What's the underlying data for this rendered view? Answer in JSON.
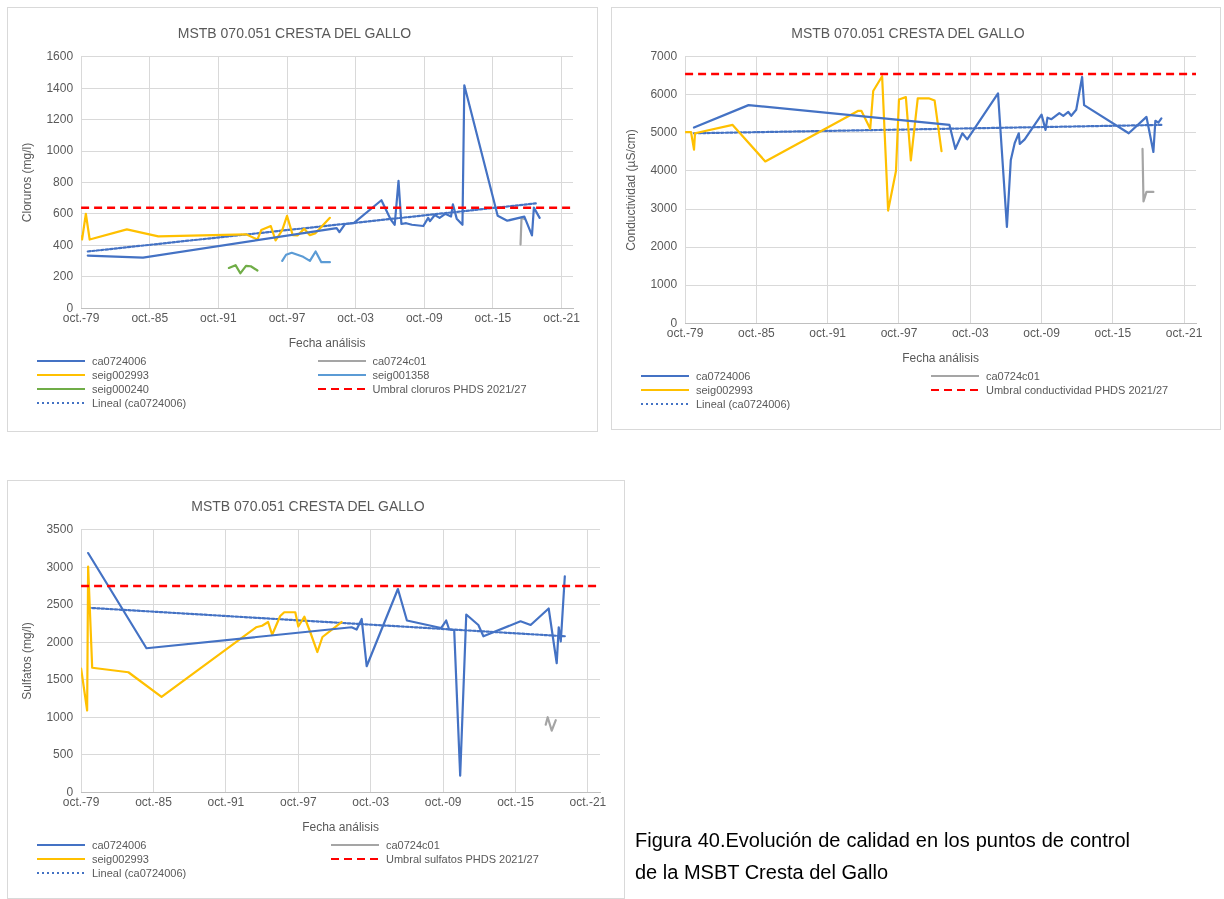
{
  "chart_data": [
    {
      "type": "line",
      "title": "MSTB 070.051 CRESTA DEL GALLO",
      "xlabel": "Fecha análisis",
      "ylabel": "Cloruros (mg/l)",
      "xlim": [
        "1979-10",
        "2022-10"
      ],
      "xticks": [
        {
          "value": "1979-10",
          "label": "oct.-79"
        },
        {
          "value": "1985-10",
          "label": "oct.-85"
        },
        {
          "value": "1991-10",
          "label": "oct.-91"
        },
        {
          "value": "1997-10",
          "label": "oct.-97"
        },
        {
          "value": "2003-10",
          "label": "oct.-03"
        },
        {
          "value": "2009-10",
          "label": "oct.-09"
        },
        {
          "value": "2015-10",
          "label": "oct.-15"
        },
        {
          "value": "2021-10",
          "label": "oct.-21"
        }
      ],
      "ylim": [
        0,
        1600
      ],
      "yticks": [
        0,
        200,
        400,
        600,
        800,
        1000,
        1200,
        1400,
        1600
      ],
      "grid": true,
      "legend": "bottom",
      "marker": "none",
      "series": [
        {
          "name": "ca0724006",
          "color": "#4472c4",
          "x": [
            "1980-05",
            "1985-03",
            "2002-02",
            "2002-05",
            "2002-11",
            "2003-08",
            "2006-01",
            "2006-11",
            "2007-03",
            "2007-07",
            "2007-10",
            "2008-03",
            "2008-09",
            "2009-09",
            "2010-02",
            "2010-04",
            "2010-09",
            "2011-02",
            "2011-08",
            "2012-02",
            "2012-04",
            "2012-08",
            "2013-02",
            "2013-04",
            "2016-03",
            "2017-01",
            "2018-07",
            "2019-03",
            "2019-05",
            "2019-11"
          ],
          "values": [
            335,
            322,
            510,
            484,
            536,
            541,
            687,
            562,
            531,
            810,
            536,
            541,
            531,
            523,
            575,
            554,
            593,
            575,
            601,
            583,
            661,
            570,
            531,
            1419,
            588,
            557,
            583,
            463,
            640,
            575
          ]
        },
        {
          "name": "ca0724c01",
          "color": "#a5a5a5",
          "x": [
            "2018-03",
            "2018-04",
            "2018-07"
          ],
          "values": [
            405,
            575,
            567
          ]
        },
        {
          "name": "seig002993",
          "color": "#ffc000",
          "x": [
            "1979-10",
            "1979-11",
            "1980-03",
            "1980-07",
            "1983-10",
            "1986-07",
            "1994-03",
            "1995-03",
            "1995-07",
            "1996-05",
            "1996-10",
            "1997-05",
            "1997-10",
            "1998-04",
            "1998-09",
            "1999-04",
            "1999-10",
            "2000-04",
            "2001-07"
          ],
          "values": [
            457,
            437,
            601,
            437,
            502,
            457,
            470,
            437,
            497,
            523,
            431,
            497,
            588,
            465,
            463,
            505,
            465,
            478,
            575
          ]
        },
        {
          "name": "seig001358",
          "color": "#5b9bd5",
          "x": [
            "1997-05",
            "1997-09",
            "1998-03",
            "1999-03",
            "1999-10",
            "2000-04",
            "2000-10",
            "2001-07"
          ],
          "values": [
            301,
            340,
            353,
            327,
            301,
            361,
            293,
            293
          ]
        },
        {
          "name": "seig000240",
          "color": "#70ad47",
          "x": [
            "1992-09",
            "1993-04",
            "1993-09",
            "1994-03",
            "1994-08",
            "1995-03"
          ],
          "values": [
            256,
            274,
            222,
            269,
            267,
            240
          ]
        },
        {
          "name": "Lineal (ca0724006)",
          "color": "#4472c4",
          "line_style": "dotted",
          "x": [
            "1980-05",
            "2019-07"
          ],
          "values": [
            361,
            667
          ]
        }
      ],
      "ref_lines": [
        {
          "axis": "y",
          "value": 640,
          "label": "Umbral cloruros PHDS 2021/27",
          "color": "#ff0000",
          "line_style": "dashed"
        }
      ]
    },
    {
      "type": "line",
      "title": "MSTB 070.051 CRESTA DEL GALLO",
      "xlabel": "Fecha análisis",
      "ylabel": "Conductividad (µS/cm)",
      "xlim": [
        "1979-10",
        "2022-10"
      ],
      "xticks": [
        {
          "value": "1979-10",
          "label": "oct.-79"
        },
        {
          "value": "1985-10",
          "label": "oct.-85"
        },
        {
          "value": "1991-10",
          "label": "oct.-91"
        },
        {
          "value": "1997-10",
          "label": "oct.-97"
        },
        {
          "value": "2003-10",
          "label": "oct.-03"
        },
        {
          "value": "2009-10",
          "label": "oct.-09"
        },
        {
          "value": "2015-10",
          "label": "oct.-15"
        },
        {
          "value": "2021-10",
          "label": "oct.-21"
        }
      ],
      "ylim": [
        0,
        7000
      ],
      "yticks": [
        0,
        1000,
        2000,
        3000,
        4000,
        5000,
        6000,
        7000
      ],
      "grid": true,
      "legend": "bottom",
      "marker": "none",
      "series": [
        {
          "name": "ca0724006",
          "color": "#4472c4",
          "x": [
            "1980-07",
            "1985-02",
            "2002-01",
            "2002-07",
            "2003-02",
            "2003-07",
            "2006-02",
            "2006-11",
            "2007-03",
            "2007-07",
            "2007-11",
            "2007-12",
            "2008-05",
            "2009-10",
            "2010-02",
            "2010-04",
            "2010-08",
            "2011-04",
            "2011-08",
            "2012-01",
            "2012-04",
            "2012-09",
            "2013-03",
            "2013-05",
            "2017-02",
            "2018-08",
            "2019-03",
            "2019-05",
            "2019-08",
            "2019-11"
          ],
          "values": [
            5140,
            5730,
            5210,
            4580,
            4990,
            4830,
            6040,
            2530,
            4290,
            4740,
            4990,
            4710,
            4830,
            5480,
            5080,
            5400,
            5360,
            5520,
            5450,
            5550,
            5450,
            5610,
            6470,
            5730,
            4990,
            5420,
            4500,
            5320,
            5270,
            5380
          ]
        },
        {
          "name": "ca0724c01",
          "color": "#a5a5a5",
          "x": [
            "2018-04",
            "2018-05",
            "2018-08",
            "2019-03"
          ],
          "values": [
            4580,
            3200,
            3450,
            3450
          ]
        },
        {
          "name": "seig002993",
          "color": "#ffc000",
          "x": [
            "1979-10",
            "1980-04",
            "1980-07",
            "1980-08",
            "1983-10",
            "1986-07",
            "1994-05",
            "1994-08",
            "1995-05",
            "1995-08",
            "1996-05",
            "1996-11",
            "1997-07",
            "1997-10",
            "1998-05",
            "1998-10",
            "1999-05",
            "2000-04",
            "2000-10",
            "2001-05"
          ],
          "values": [
            5020,
            5020,
            4560,
            4990,
            5210,
            4250,
            5580,
            5580,
            5110,
            6100,
            6490,
            2960,
            4000,
            5880,
            5940,
            4280,
            5910,
            5910,
            5850,
            4520
          ]
        },
        {
          "name": "Lineal (ca0724006)",
          "color": "#4472c4",
          "line_style": "dotted",
          "x": [
            "1980-07",
            "2019-11"
          ],
          "values": [
            4990,
            5210
          ]
        }
      ],
      "ref_lines": [
        {
          "axis": "y",
          "value": 6550,
          "label": "Umbral conductividad PHDS 2021/27",
          "color": "#ff0000",
          "line_style": "dashed"
        }
      ]
    },
    {
      "type": "line",
      "title": "MSTB 070.051 CRESTA DEL GALLO",
      "xlabel": "Fecha análisis",
      "ylabel": "Sulfatos (mg/l)",
      "xlim": [
        "1979-10",
        "2022-10"
      ],
      "xticks": [
        {
          "value": "1979-10",
          "label": "oct.-79"
        },
        {
          "value": "1985-10",
          "label": "oct.-85"
        },
        {
          "value": "1991-10",
          "label": "oct.-91"
        },
        {
          "value": "1997-10",
          "label": "oct.-97"
        },
        {
          "value": "2003-10",
          "label": "oct.-03"
        },
        {
          "value": "2009-10",
          "label": "oct.-09"
        },
        {
          "value": "2015-10",
          "label": "oct.-15"
        },
        {
          "value": "2021-10",
          "label": "oct.-21"
        }
      ],
      "ylim": [
        0,
        3500
      ],
      "yticks": [
        0,
        500,
        1000,
        1500,
        2000,
        2500,
        3000,
        3500
      ],
      "grid": true,
      "legend": "bottom",
      "marker": "none",
      "series": [
        {
          "name": "ca0724006",
          "color": "#4472c4",
          "x": [
            "1980-05",
            "1985-03",
            "2002-03",
            "2002-08",
            "2003-01",
            "2003-06",
            "2006-01",
            "2006-10",
            "2009-08",
            "2010-01",
            "2010-04",
            "2010-09",
            "2011-03",
            "2011-09",
            "2012-09",
            "2013-02",
            "2016-03",
            "2017-01",
            "2018-07",
            "2019-03",
            "2019-05",
            "2019-07",
            "2019-08",
            "2019-11"
          ],
          "values": [
            3190,
            1920,
            2200,
            2170,
            2310,
            1680,
            2710,
            2290,
            2190,
            2290,
            2170,
            2160,
            220,
            2370,
            2230,
            2080,
            2280,
            2230,
            2450,
            1720,
            2200,
            2010,
            2220,
            2880
          ]
        },
        {
          "name": "ca0724c01",
          "color": "#a5a5a5",
          "x": [
            "2018-04",
            "2018-06",
            "2018-10",
            "2019-02"
          ],
          "values": [
            900,
            1000,
            820,
            960
          ]
        },
        {
          "name": "seig002993",
          "color": "#ffc000",
          "x": [
            "1979-10",
            "1980-04",
            "1980-05",
            "1980-09",
            "1983-09",
            "1986-06",
            "1994-04",
            "1994-10",
            "1995-04",
            "1995-08",
            "1996-04",
            "1996-08",
            "1997-07",
            "1997-10",
            "1998-04",
            "1998-10",
            "1999-05",
            "1999-10",
            "2001-05"
          ],
          "values": [
            1650,
            1090,
            3010,
            1660,
            1600,
            1270,
            2200,
            2220,
            2270,
            2100,
            2350,
            2400,
            2400,
            2210,
            2340,
            2130,
            1870,
            2070,
            2270
          ]
        },
        {
          "name": "Lineal (ca0724006)",
          "color": "#4472c4",
          "line_style": "dotted",
          "x": [
            "1980-05",
            "2019-11"
          ],
          "values": [
            2460,
            2080
          ]
        }
      ],
      "ref_lines": [
        {
          "axis": "y",
          "value": 2750,
          "label": "Umbral sulfatos PHDS 2021/27",
          "color": "#ff0000",
          "line_style": "dashed"
        }
      ],
      "annotations": [
        "Figura 40.Evolución de calidad en los puntos de control de la MSBT Cresta del Gallo"
      ]
    }
  ]
}
